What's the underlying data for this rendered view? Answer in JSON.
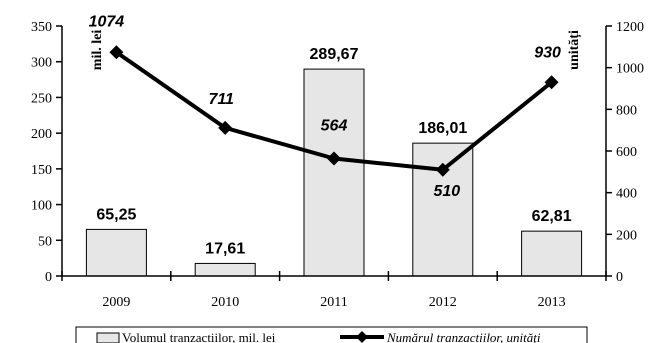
{
  "chart_data": {
    "type": "bar",
    "categories": [
      "2009",
      "2010",
      "2011",
      "2012",
      "2013"
    ],
    "series": [
      {
        "name": "Volumul tranzactiilor, mil. lei",
        "type": "bar",
        "axis": "left",
        "values": [
          65.25,
          17.61,
          289.67,
          186.01,
          62.81
        ],
        "labels": [
          "65,25",
          "17,61",
          "289,67",
          "186,01",
          "62,81"
        ],
        "color": "#e6e6e6"
      },
      {
        "name": "Numărul tranzactiilor, unități",
        "type": "line",
        "axis": "right",
        "values": [
          1074,
          711,
          564,
          510,
          930
        ],
        "labels": [
          "1074",
          "711",
          "564",
          "510",
          "930"
        ],
        "color": "#000000"
      }
    ],
    "ylabel": "mil. lei",
    "y2label": "unități",
    "ylim": [
      0,
      350
    ],
    "y2lim": [
      0,
      1200
    ],
    "yticks": [
      "0",
      "50",
      "100",
      "150",
      "200",
      "250",
      "300",
      "350"
    ],
    "y2ticks": [
      "0",
      "200",
      "400",
      "600",
      "800",
      "1000",
      "1200"
    ],
    "grid": false,
    "legend": "bottom"
  }
}
